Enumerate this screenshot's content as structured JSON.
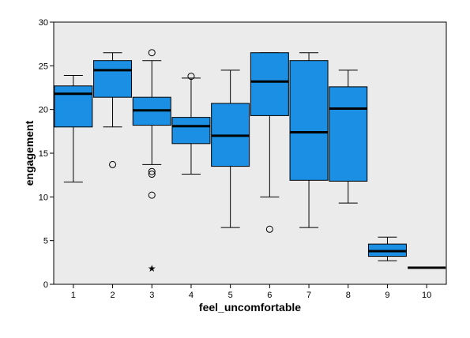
{
  "chart_data": {
    "type": "boxplot",
    "xlabel": "feel_uncomfortable",
    "ylabel": "engagement",
    "ylim": [
      0,
      30
    ],
    "yticks": [
      0,
      5,
      10,
      15,
      20,
      25,
      30
    ],
    "categories": [
      "1",
      "2",
      "3",
      "4",
      "5",
      "6",
      "7",
      "8",
      "9",
      "10"
    ],
    "boxes": [
      {
        "category": "1",
        "min": 11.7,
        "q1": 18.0,
        "median": 21.8,
        "q3": 22.7,
        "max": 23.9,
        "outliers": [],
        "extremes": []
      },
      {
        "category": "2",
        "min": 18.0,
        "q1": 21.4,
        "median": 24.5,
        "q3": 25.6,
        "max": 26.5,
        "outliers": [
          13.7
        ],
        "extremes": []
      },
      {
        "category": "3",
        "min": 13.7,
        "q1": 18.2,
        "median": 19.9,
        "q3": 21.4,
        "max": 25.6,
        "outliers": [
          26.5,
          12.9,
          12.6,
          10.2
        ],
        "extremes": [
          1.9
        ]
      },
      {
        "category": "4",
        "min": 12.6,
        "q1": 16.1,
        "median": 18.1,
        "q3": 19.1,
        "max": 23.6,
        "outliers": [
          23.8
        ],
        "extremes": []
      },
      {
        "category": "5",
        "min": 6.5,
        "q1": 13.5,
        "median": 17.0,
        "q3": 20.7,
        "max": 24.5,
        "outliers": [],
        "extremes": []
      },
      {
        "category": "6",
        "min": 10.0,
        "q1": 19.3,
        "median": 23.2,
        "q3": 26.5,
        "max": 26.5,
        "outliers": [
          6.3
        ],
        "extremes": []
      },
      {
        "category": "7",
        "min": 6.5,
        "q1": 11.9,
        "median": 17.4,
        "q3": 25.6,
        "max": 26.5,
        "outliers": [],
        "extremes": []
      },
      {
        "category": "8",
        "min": 9.3,
        "q1": 11.8,
        "median": 20.1,
        "q3": 22.6,
        "max": 24.5,
        "outliers": [],
        "extremes": []
      },
      {
        "category": "9",
        "min": 2.7,
        "q1": 3.2,
        "median": 3.8,
        "q3": 4.6,
        "max": 5.4,
        "outliers": [],
        "extremes": []
      },
      {
        "category": "10",
        "min": 1.9,
        "q1": 1.9,
        "median": 1.9,
        "q3": 1.9,
        "max": 1.9,
        "outliers": [],
        "extremes": []
      }
    ],
    "colors": {
      "box_fill": "#1a8fe3",
      "plot_background": "#ebebeb",
      "median": "#000000"
    },
    "grid": false,
    "legend": "none"
  }
}
